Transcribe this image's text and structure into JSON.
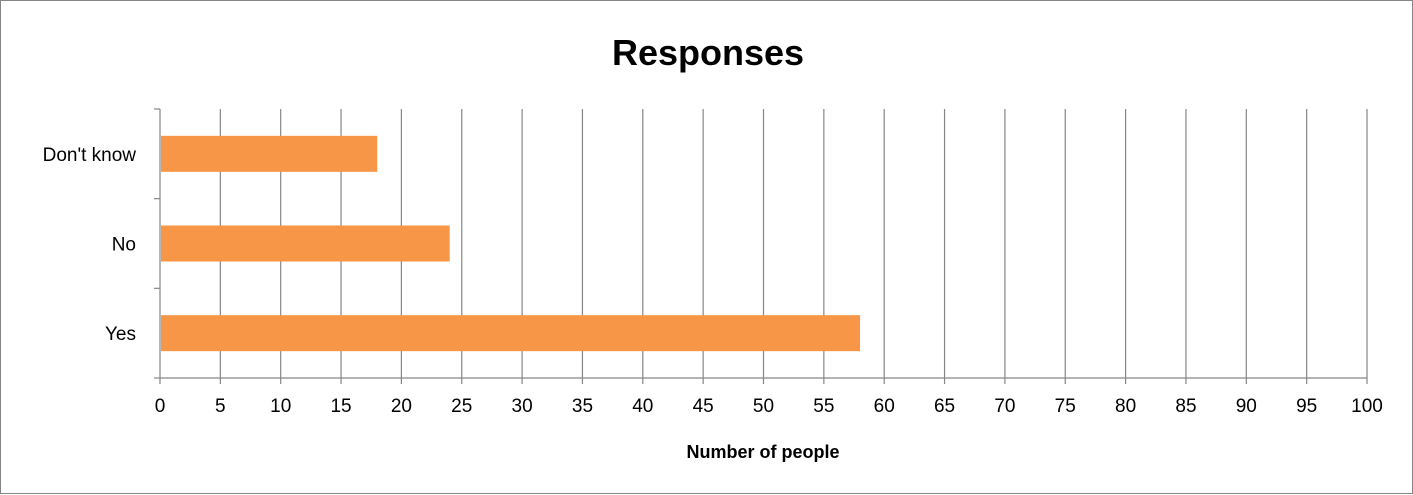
{
  "chart_data": {
    "type": "bar",
    "orientation": "horizontal",
    "title": "Responses",
    "xlabel": "Number of people",
    "ylabel": "",
    "categories": [
      "Yes",
      "No",
      "Don't know"
    ],
    "values": [
      58,
      24,
      18
    ],
    "xlim": [
      0,
      100
    ],
    "x_ticks": [
      0,
      5,
      10,
      15,
      20,
      25,
      30,
      35,
      40,
      45,
      50,
      55,
      60,
      65,
      70,
      75,
      80,
      85,
      90,
      95,
      100
    ],
    "grid": "vertical",
    "legend": "none",
    "bar_color": "#F79646",
    "grid_color": "#868686"
  }
}
